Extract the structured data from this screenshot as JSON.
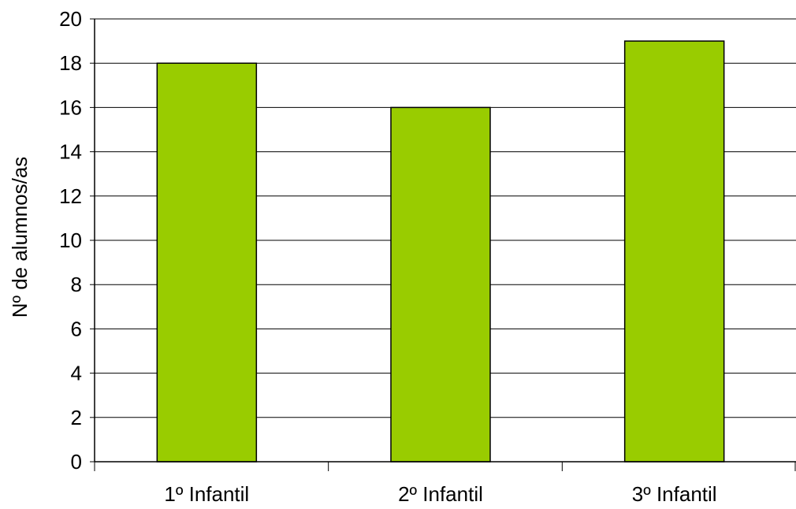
{
  "chart_data": {
    "type": "bar",
    "title": "",
    "xlabel": "",
    "ylabel": "Nº de alumnos/as",
    "categories": [
      "1º Infantil",
      "2º Infantil",
      "3º Infantil"
    ],
    "values": [
      18,
      16,
      19
    ],
    "ylim": [
      0,
      20
    ],
    "yticks": [
      0,
      2,
      4,
      6,
      8,
      10,
      12,
      14,
      16,
      18,
      20
    ],
    "grid": "horizontal",
    "legend": "none",
    "colors": {
      "bar_fill": "#99CC00",
      "bar_stroke": "#000000",
      "gridline": "#000000",
      "axis": "#000000",
      "background": "#FFFFFF"
    }
  }
}
